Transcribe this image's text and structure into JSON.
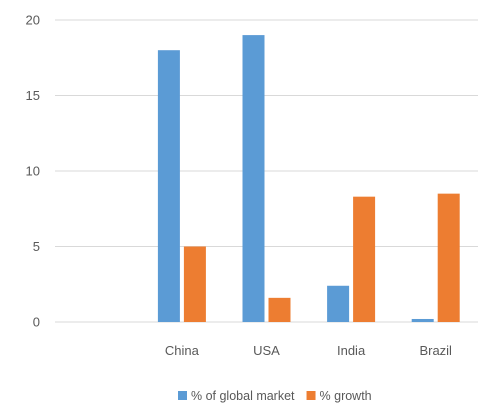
{
  "chart_data": {
    "type": "bar",
    "categories": [
      "",
      "China",
      "USA",
      "India",
      "Brazil"
    ],
    "series": [
      {
        "name": "% of global market",
        "color": "#5B9BD5",
        "values": [
          null,
          18,
          19,
          2.4,
          0.2
        ]
      },
      {
        "name": "% growth",
        "color": "#ED7D31",
        "values": [
          null,
          5,
          1.6,
          8.3,
          8.5
        ]
      }
    ],
    "ylim": [
      0,
      20
    ],
    "yticks": [
      0,
      5,
      10,
      15,
      20
    ],
    "title": "",
    "xlabel": "",
    "ylabel": "",
    "grid": true,
    "legend_position": "bottom"
  }
}
